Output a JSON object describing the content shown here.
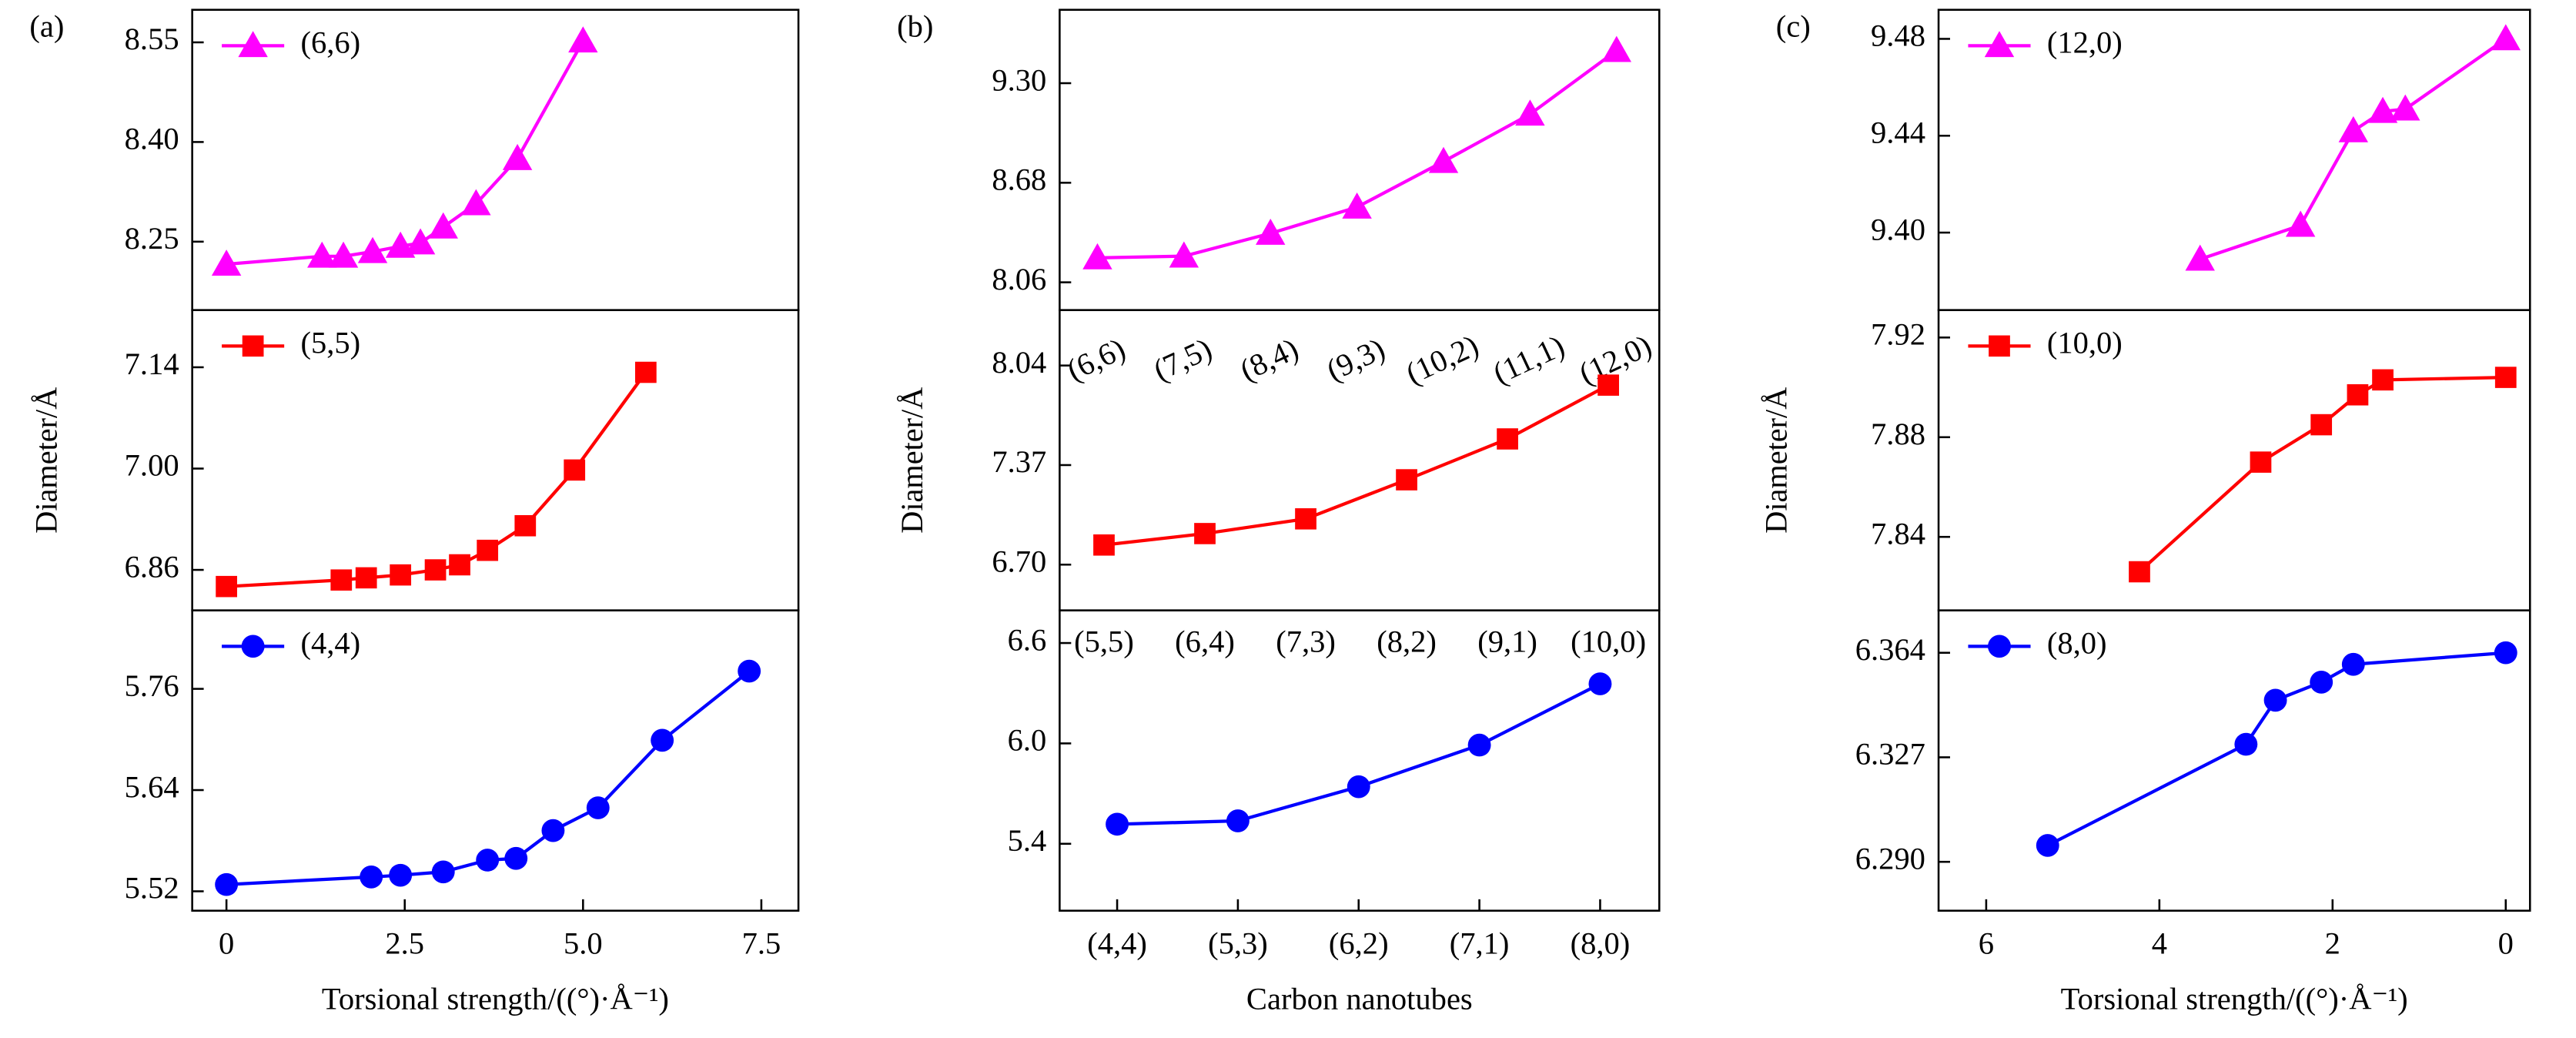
{
  "chart_data": [
    {
      "type": "line",
      "label": "(a)",
      "legend": true,
      "x": [
        0,
        1.34,
        1.64,
        2.05,
        2.44,
        2.72,
        3.04,
        3.5,
        4.08,
        5.0
      ],
      "xlim": [
        -0.48,
        8.02
      ],
      "series": [
        {
          "name": "(6,6)",
          "color": "#ff00ff",
          "marker": "triangle",
          "values": [
            8.216,
            8.228,
            8.228,
            8.235,
            8.243,
            8.248,
            8.272,
            8.307,
            8.375,
            8.552
          ]
        }
      ],
      "ylim": [
        8.147,
        8.599
      ],
      "yticks": [
        8.25,
        {
          "value": 8.4,
          "label": "8.40"
        },
        8.55
      ]
    },
    {
      "type": "line",
      "ylabel": "Diameter/Å",
      "legend": true,
      "x": [
        0,
        1.61,
        1.96,
        2.44,
        2.93,
        3.27,
        3.66,
        4.19,
        4.88,
        5.88
      ],
      "xlim": [
        -0.48,
        8.02
      ],
      "series": [
        {
          "name": "(5,5)",
          "color": "#ff0000",
          "marker": "square",
          "values": [
            6.837,
            6.846,
            6.849,
            6.853,
            6.86,
            6.867,
            6.887,
            6.921,
            6.998,
            7.133
          ]
        }
      ],
      "ylim": [
        6.804,
        7.219
      ],
      "yticks": [
        6.86,
        {
          "value": 7,
          "label": "7.00"
        },
        7.14
      ]
    },
    {
      "type": "line",
      "xlabel": "Torsional strength/((°)·Å⁻¹)",
      "legend": true,
      "x": [
        0,
        2.03,
        2.44,
        3.04,
        3.66,
        4.06,
        4.58,
        5.21,
        6.11,
        7.33
      ],
      "xlim": [
        -0.48,
        8.02
      ],
      "xticks": [
        0,
        2.5,
        {
          "value": 5,
          "label": "5.0"
        },
        7.5
      ],
      "series": [
        {
          "name": "(4,4)",
          "color": "#0000ff",
          "marker": "circle",
          "values": [
            5.528,
            5.537,
            5.539,
            5.543,
            5.557,
            5.559,
            5.592,
            5.619,
            5.699,
            5.781
          ]
        }
      ],
      "ylim": [
        5.497,
        5.853
      ],
      "yticks": [
        5.52,
        5.64,
        5.76
      ]
    },
    {
      "type": "line",
      "label": "(b)",
      "categories": [
        "(6,6)",
        "(7,5)",
        "(8,4)",
        "(9,3)",
        "(10,2)",
        "(11,1)",
        "(12,0)"
      ],
      "series": [
        {
          "color": "#ff00ff",
          "marker": "triangle",
          "values": [
            8.212,
            8.223,
            8.365,
            8.528,
            8.812,
            9.107,
            9.503
          ]
        }
      ],
      "ylim": [
        7.887,
        9.757
      ],
      "yticks": [
        8.06,
        8.68,
        {
          "value": 9.3,
          "label": "9.30"
        }
      ]
    },
    {
      "type": "line",
      "ylabel": "Diameter/Å",
      "categories": [
        "(5,5)",
        "(6,4)",
        "(7,3)",
        "(8,2)",
        "(9,1)",
        "(10,0)"
      ],
      "series": [
        {
          "color": "#ff0000",
          "marker": "square",
          "values": [
            6.832,
            6.909,
            7.008,
            7.271,
            7.546,
            7.908
          ]
        }
      ],
      "ylim": [
        6.392,
        8.413
      ],
      "yticks": [
        {
          "value": 6.7,
          "label": "6.70"
        },
        7.37,
        8.04
      ]
    },
    {
      "type": "line",
      "xlabel": "Carbon nanotubes",
      "categories": [
        "(4,4)",
        "(5,3)",
        "(6,2)",
        "(7,1)",
        "(8,0)"
      ],
      "series": [
        {
          "color": "#0000ff",
          "marker": "circle",
          "values": [
            5.517,
            5.537,
            5.741,
            5.99,
            6.356
          ]
        }
      ],
      "ylim": [
        5.0,
        6.795
      ],
      "yticks": [
        5.4,
        {
          "value": 6,
          "label": "6.0"
        },
        6.6
      ]
    },
    {
      "type": "line",
      "label": "(c)",
      "legend": true,
      "x": [
        3.53,
        2.37,
        1.76,
        1.42,
        1.16,
        0
      ],
      "xlim": [
        6.55,
        -0.28
      ],
      "series": [
        {
          "name": "(12,0)",
          "color": "#ff00ff",
          "marker": "triangle",
          "values": [
            9.389,
            9.403,
            9.442,
            9.45,
            9.451,
            9.48
          ]
        }
      ],
      "ylim": [
        9.368,
        9.492
      ],
      "yticks": [
        {
          "value": 9.4,
          "label": "9.40"
        },
        9.44,
        9.48
      ]
    },
    {
      "type": "line",
      "ylabel": "Diameter/Å",
      "legend": true,
      "x": [
        4.23,
        2.83,
        2.13,
        1.71,
        1.42,
        0
      ],
      "xlim": [
        6.55,
        -0.28
      ],
      "series": [
        {
          "name": "(10,0)",
          "color": "#ff0000",
          "marker": "square",
          "values": [
            7.826,
            7.87,
            7.885,
            7.897,
            7.903,
            7.904
          ]
        }
      ],
      "ylim": [
        7.8105,
        7.931
      ],
      "yticks": [
        7.84,
        7.88,
        7.92
      ]
    },
    {
      "type": "line",
      "xlabel": "Torsional strength/((°)·Å⁻¹)",
      "legend": true,
      "x": [
        5.29,
        3.0,
        2.66,
        2.13,
        1.76,
        0
      ],
      "xlim": [
        6.55,
        -0.28
      ],
      "xticks": [
        6,
        4,
        2,
        0
      ],
      "series": [
        {
          "name": "(8,0)",
          "color": "#0000ff",
          "marker": "circle",
          "values": [
            6.2958,
            6.3316,
            6.3472,
            6.3536,
            6.3599,
            6.364
          ]
        }
      ],
      "ylim": [
        6.2727,
        6.379
      ],
      "yticks": [
        {
          "value": 6.29,
          "label": "6.290"
        },
        6.327,
        6.364
      ]
    }
  ]
}
